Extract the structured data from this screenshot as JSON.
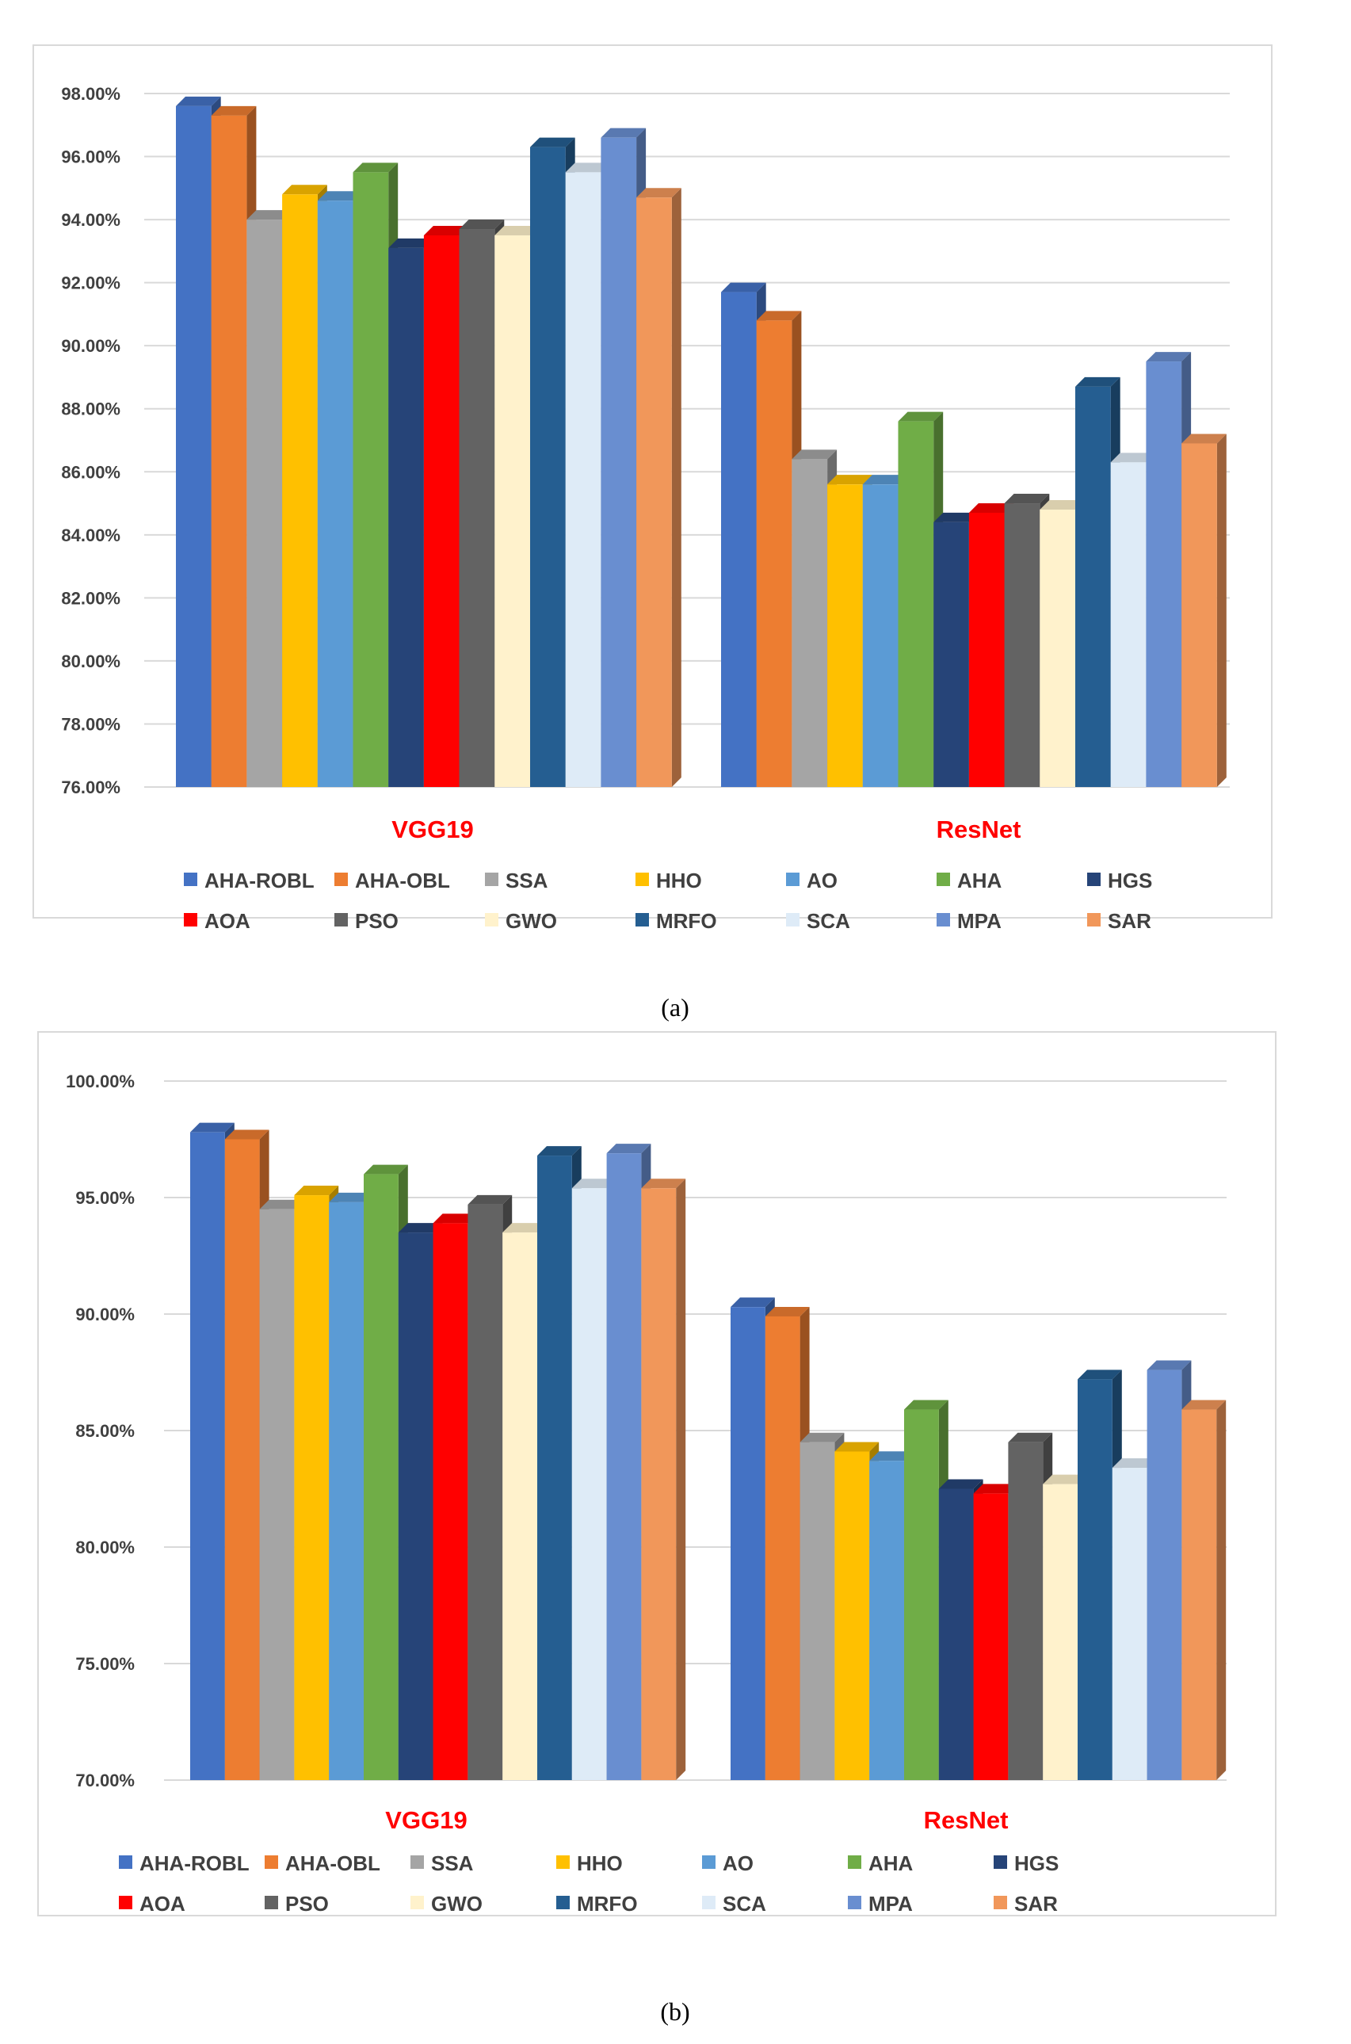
{
  "colors": {
    "AHA-ROBL": "#4472c4",
    "AHA-OBL": "#ed7d31",
    "SSA": "#a5a5a5",
    "HHO": "#ffc000",
    "AO": "#5b9bd5",
    "AHA": "#70ad47",
    "HGS": "#264478",
    "AOA": "#ff0000",
    "PSO": "#636363",
    "GWO": "#fff2cc",
    "MRFO": "#255e91",
    "SCA": "#deebf7",
    "MPA": "#698ed0",
    "SAR": "#f1975a"
  },
  "chart_data": [
    {
      "type": "bar",
      "caption": "(a)",
      "categories": [
        "VGG19",
        "ResNet"
      ],
      "ylim": [
        76,
        98
      ],
      "yticks": [
        "76.00%",
        "78.00%",
        "80.00%",
        "82.00%",
        "84.00%",
        "86.00%",
        "88.00%",
        "90.00%",
        "92.00%",
        "94.00%",
        "96.00%",
        "98.00%"
      ],
      "ytick_values": [
        76,
        78,
        80,
        82,
        84,
        86,
        88,
        90,
        92,
        94,
        96,
        98
      ],
      "legend_position": "bottom",
      "series": [
        {
          "name": "AHA-ROBL",
          "values": [
            97.6,
            91.7
          ]
        },
        {
          "name": "AHA-OBL",
          "values": [
            97.3,
            90.8
          ]
        },
        {
          "name": "SSA",
          "values": [
            94.0,
            86.4
          ]
        },
        {
          "name": "HHO",
          "values": [
            94.8,
            85.6
          ]
        },
        {
          "name": "AO",
          "values": [
            94.6,
            85.6
          ]
        },
        {
          "name": "AHA",
          "values": [
            95.5,
            87.6
          ]
        },
        {
          "name": "HGS",
          "values": [
            93.1,
            84.4
          ]
        },
        {
          "name": "AOA",
          "values": [
            93.5,
            84.7
          ]
        },
        {
          "name": "PSO",
          "values": [
            93.7,
            85.0
          ]
        },
        {
          "name": "GWO",
          "values": [
            93.5,
            84.8
          ]
        },
        {
          "name": "MRFO",
          "values": [
            96.3,
            88.7
          ]
        },
        {
          "name": "SCA",
          "values": [
            95.5,
            86.3
          ]
        },
        {
          "name": "MPA",
          "values": [
            96.6,
            89.5
          ]
        },
        {
          "name": "SAR",
          "values": [
            94.7,
            86.9
          ]
        }
      ]
    },
    {
      "type": "bar",
      "caption": "(b)",
      "categories": [
        "VGG19",
        "ResNet"
      ],
      "ylim": [
        70,
        100
      ],
      "yticks": [
        "70.00%",
        "75.00%",
        "80.00%",
        "85.00%",
        "90.00%",
        "95.00%",
        "100.00%"
      ],
      "ytick_values": [
        70,
        75,
        80,
        85,
        90,
        95,
        100
      ],
      "legend_position": "bottom",
      "series": [
        {
          "name": "AHA-ROBL",
          "values": [
            97.8,
            90.3
          ]
        },
        {
          "name": "AHA-OBL",
          "values": [
            97.5,
            89.9
          ]
        },
        {
          "name": "SSA",
          "values": [
            94.5,
            84.5
          ]
        },
        {
          "name": "HHO",
          "values": [
            95.1,
            84.1
          ]
        },
        {
          "name": "AO",
          "values": [
            94.8,
            83.7
          ]
        },
        {
          "name": "AHA",
          "values": [
            96.0,
            85.9
          ]
        },
        {
          "name": "HGS",
          "values": [
            93.5,
            82.5
          ]
        },
        {
          "name": "AOA",
          "values": [
            93.9,
            82.3
          ]
        },
        {
          "name": "PSO",
          "values": [
            94.7,
            84.5
          ]
        },
        {
          "name": "GWO",
          "values": [
            93.5,
            82.7
          ]
        },
        {
          "name": "MRFO",
          "values": [
            96.8,
            87.2
          ]
        },
        {
          "name": "SCA",
          "values": [
            95.4,
            83.4
          ]
        },
        {
          "name": "MPA",
          "values": [
            96.9,
            87.6
          ]
        },
        {
          "name": "SAR",
          "values": [
            95.4,
            85.9
          ]
        }
      ]
    }
  ]
}
